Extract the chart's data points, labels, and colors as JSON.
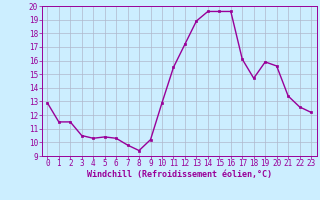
{
  "x": [
    0,
    1,
    2,
    3,
    4,
    5,
    6,
    7,
    8,
    9,
    10,
    11,
    12,
    13,
    14,
    15,
    16,
    17,
    18,
    19,
    20,
    21,
    22,
    23
  ],
  "y": [
    12.9,
    11.5,
    11.5,
    10.5,
    10.3,
    10.4,
    10.3,
    9.8,
    9.4,
    10.2,
    12.9,
    15.5,
    17.2,
    18.9,
    19.6,
    19.6,
    19.6,
    16.1,
    14.7,
    15.9,
    15.6,
    13.4,
    12.6,
    12.2
  ],
  "line_color": "#990099",
  "marker": "s",
  "marker_size": 2.0,
  "bg_color": "#cceeff",
  "grid_color": "#b0b8cc",
  "xlabel": "Windchill (Refroidissement éolien,°C)",
  "xlabel_color": "#990099",
  "xlabel_fontsize": 6.0,
  "tick_color": "#990099",
  "tick_fontsize": 5.5,
  "ylim": [
    9,
    20
  ],
  "yticks": [
    9,
    10,
    11,
    12,
    13,
    14,
    15,
    16,
    17,
    18,
    19,
    20
  ],
  "xticks": [
    0,
    1,
    2,
    3,
    4,
    5,
    6,
    7,
    8,
    9,
    10,
    11,
    12,
    13,
    14,
    15,
    16,
    17,
    18,
    19,
    20,
    21,
    22,
    23
  ],
  "line_width": 1.0
}
